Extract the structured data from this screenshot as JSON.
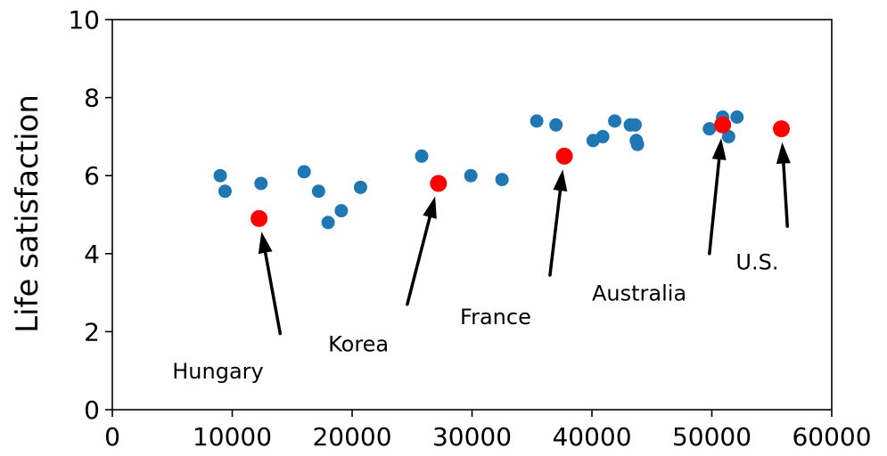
{
  "chart_data": {
    "type": "scatter",
    "title": "",
    "xlabel": "",
    "ylabel": "Life satisfaction",
    "xlim": [
      0,
      60000
    ],
    "ylim": [
      0,
      10
    ],
    "xticks": [
      0,
      10000,
      20000,
      30000,
      40000,
      50000,
      60000
    ],
    "yticks": [
      0,
      2,
      4,
      6,
      8,
      10
    ],
    "xtick_labels": [
      "0",
      "10000",
      "20000",
      "30000",
      "40000",
      "50000",
      "60000"
    ],
    "ytick_labels": [
      "0",
      "2",
      "4",
      "6",
      "8",
      "10"
    ],
    "grid": false,
    "colors": {
      "base": "#1f77b4",
      "highlight": "#ff0000"
    },
    "series": [
      {
        "points": [
          [
            9000,
            6.0
          ],
          [
            9400,
            5.6
          ],
          [
            12400,
            5.8
          ],
          [
            16000,
            6.1
          ],
          [
            17200,
            5.6
          ],
          [
            18000,
            4.8
          ],
          [
            19100,
            5.1
          ],
          [
            20700,
            5.7
          ],
          [
            25800,
            6.5
          ],
          [
            29900,
            6.0
          ],
          [
            32500,
            5.9
          ],
          [
            35400,
            7.4
          ],
          [
            37000,
            7.3
          ],
          [
            40100,
            6.9
          ],
          [
            40900,
            7.0
          ],
          [
            41900,
            7.4
          ],
          [
            43200,
            7.3
          ],
          [
            43600,
            7.3
          ],
          [
            43700,
            6.9
          ],
          [
            43800,
            6.8
          ],
          [
            49800,
            7.2
          ],
          [
            50900,
            7.5
          ],
          [
            51400,
            7.0
          ],
          [
            52100,
            7.5
          ]
        ]
      },
      {
        "points": [
          [
            12240,
            4.9
          ],
          [
            27200,
            5.8
          ],
          [
            37700,
            6.5
          ],
          [
            50900,
            7.3
          ],
          [
            55800,
            7.2
          ]
        ]
      }
    ],
    "annotations": [
      {
        "text": "Hungary",
        "point": [
          12240,
          4.9
        ],
        "text_pos": [
          5000,
          1.0
        ]
      },
      {
        "text": "Korea",
        "point": [
          27200,
          5.8
        ],
        "text_pos": [
          18000,
          1.7
        ]
      },
      {
        "text": "France",
        "point": [
          37700,
          6.5
        ],
        "text_pos": [
          29000,
          2.4
        ]
      },
      {
        "text": "Australia",
        "point": [
          50900,
          7.3
        ],
        "text_pos": [
          40000,
          3.0
        ]
      },
      {
        "text": "U.S.",
        "point": [
          55800,
          7.2
        ],
        "text_pos": [
          52000,
          3.8
        ]
      }
    ]
  }
}
